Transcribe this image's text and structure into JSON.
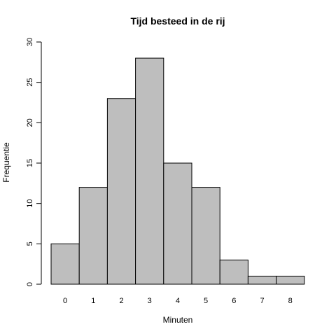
{
  "chart_data": {
    "type": "bar",
    "title": "Tijd besteed in de rij",
    "xlabel": "Minuten",
    "ylabel": "Frequentie",
    "categories": [
      "0",
      "1",
      "2",
      "3",
      "4",
      "5",
      "6",
      "7",
      "8"
    ],
    "values": [
      5,
      12,
      23,
      28,
      15,
      12,
      3,
      1,
      1
    ],
    "ylim": [
      0,
      30
    ],
    "yticks": [
      0,
      5,
      10,
      15,
      20,
      25,
      30
    ],
    "grid": false,
    "bar_color": "#bebebe",
    "bar_edge_color": "#000000"
  }
}
